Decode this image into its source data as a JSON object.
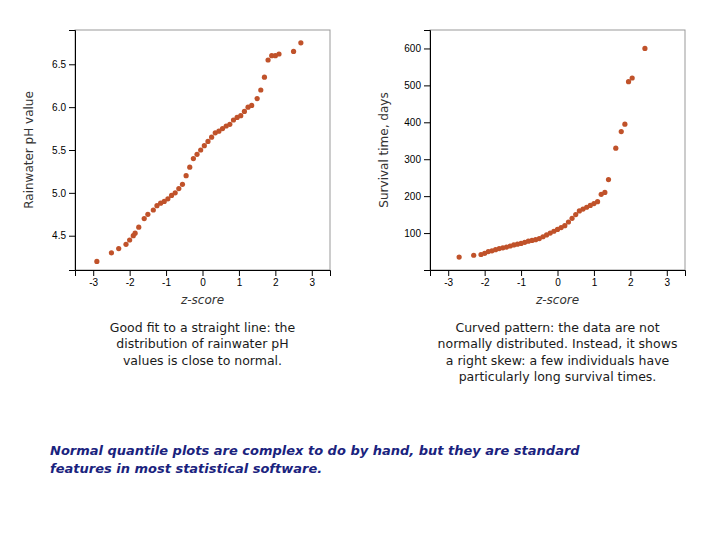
{
  "chart_data": [
    {
      "type": "scatter",
      "xlabel": "z-score",
      "ylabel": "Rainwater pH value",
      "color": "#c0522a",
      "xlim": [
        -3.5,
        3.5
      ],
      "ylim": [
        4.1,
        6.9
      ],
      "xticks": [
        -3,
        -2,
        -1,
        0,
        1,
        2,
        3
      ],
      "yticks": [
        4.5,
        {
          "value": 5.0,
          "label": "5.0"
        },
        5.5,
        {
          "value": 6.0,
          "label": "6.0"
        },
        6.5
      ],
      "x": [
        -2.9,
        -2.5,
        -2.3,
        -2.1,
        -2.0,
        -1.9,
        -1.85,
        -1.75,
        -1.6,
        -1.5,
        -1.35,
        -1.25,
        -1.15,
        -1.05,
        -0.95,
        -0.85,
        -0.75,
        -0.65,
        -0.55,
        -0.45,
        -0.35,
        -0.25,
        -0.15,
        -0.05,
        0.05,
        0.15,
        0.25,
        0.35,
        0.45,
        0.55,
        0.65,
        0.75,
        0.85,
        0.95,
        1.05,
        1.15,
        1.25,
        1.35,
        1.5,
        1.6,
        1.7,
        1.8,
        1.9,
        2.0,
        2.1,
        2.5,
        2.7
      ],
      "y": [
        4.2,
        4.3,
        4.35,
        4.4,
        4.45,
        4.5,
        4.53,
        4.6,
        4.7,
        4.75,
        4.8,
        4.85,
        4.88,
        4.9,
        4.93,
        4.97,
        5.0,
        5.05,
        5.1,
        5.2,
        5.3,
        5.4,
        5.45,
        5.5,
        5.55,
        5.6,
        5.65,
        5.7,
        5.72,
        5.75,
        5.78,
        5.8,
        5.85,
        5.88,
        5.9,
        5.95,
        6.0,
        6.02,
        6.1,
        6.2,
        6.35,
        6.55,
        6.6,
        6.6,
        6.62,
        6.65,
        6.75
      ],
      "caption": "Good fit to a straight line: the\ndistribution of rainwater pH\nvalues is close to normal."
    },
    {
      "type": "scatter",
      "xlabel": "z-score",
      "ylabel": "Survival time, days",
      "color": "#c0522a",
      "xlim": [
        -3.5,
        3.5
      ],
      "ylim": [
        0,
        650
      ],
      "xticks": [
        -3,
        -2,
        -1,
        0,
        1,
        2,
        3
      ],
      "yticks": [
        100,
        200,
        300,
        400,
        500,
        600
      ],
      "x": [
        -2.7,
        -2.3,
        -2.1,
        -2.0,
        -1.9,
        -1.8,
        -1.7,
        -1.6,
        -1.5,
        -1.4,
        -1.3,
        -1.2,
        -1.1,
        -1.0,
        -0.9,
        -0.8,
        -0.7,
        -0.6,
        -0.5,
        -0.4,
        -0.3,
        -0.2,
        -0.1,
        0.0,
        0.1,
        0.2,
        0.3,
        0.4,
        0.5,
        0.6,
        0.7,
        0.8,
        0.9,
        1.0,
        1.1,
        1.2,
        1.3,
        1.4,
        1.6,
        1.75,
        1.85,
        1.95,
        2.05,
        2.4
      ],
      "y": [
        35,
        40,
        42,
        45,
        50,
        52,
        55,
        58,
        60,
        62,
        65,
        68,
        70,
        72,
        75,
        78,
        80,
        82,
        85,
        90,
        95,
        100,
        105,
        110,
        115,
        120,
        130,
        140,
        150,
        160,
        165,
        170,
        175,
        180,
        185,
        205,
        210,
        245,
        330,
        375,
        395,
        510,
        520,
        600
      ],
      "caption": "Curved pattern: the data are not\nnormally distributed. Instead, it shows\na right skew: a few individuals have\nparticularly long survival times."
    }
  ],
  "footer": "Normal quantile plots are complex to do by hand, but they are standard\nfeatures in most statistical software."
}
